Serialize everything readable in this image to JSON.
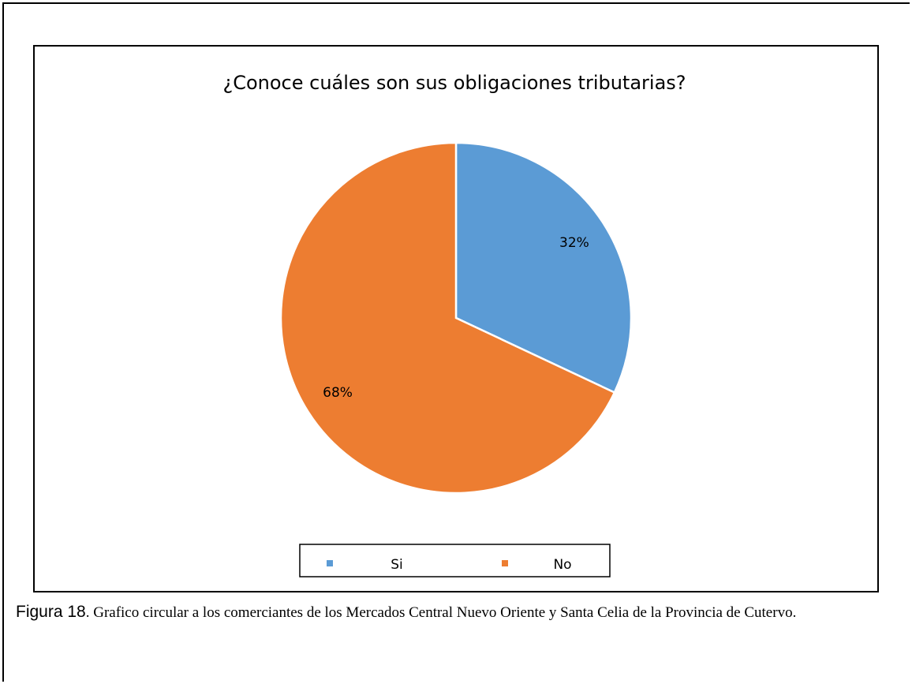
{
  "chart_data": {
    "type": "pie",
    "title": "¿Conoce  cuáles son sus obligaciones tributarias?",
    "categories": [
      "Si",
      "No"
    ],
    "values": [
      32,
      68
    ],
    "value_labels": [
      "32%",
      "68%"
    ],
    "colors": [
      "#5b9bd5",
      "#ed7d31"
    ],
    "legend": "bottom"
  },
  "caption": {
    "label": "Figura 18",
    "text": ". Grafico circular a los comerciantes de los Mercados Central Nuevo Oriente y Santa Celia de la Provincia de Cutervo."
  }
}
